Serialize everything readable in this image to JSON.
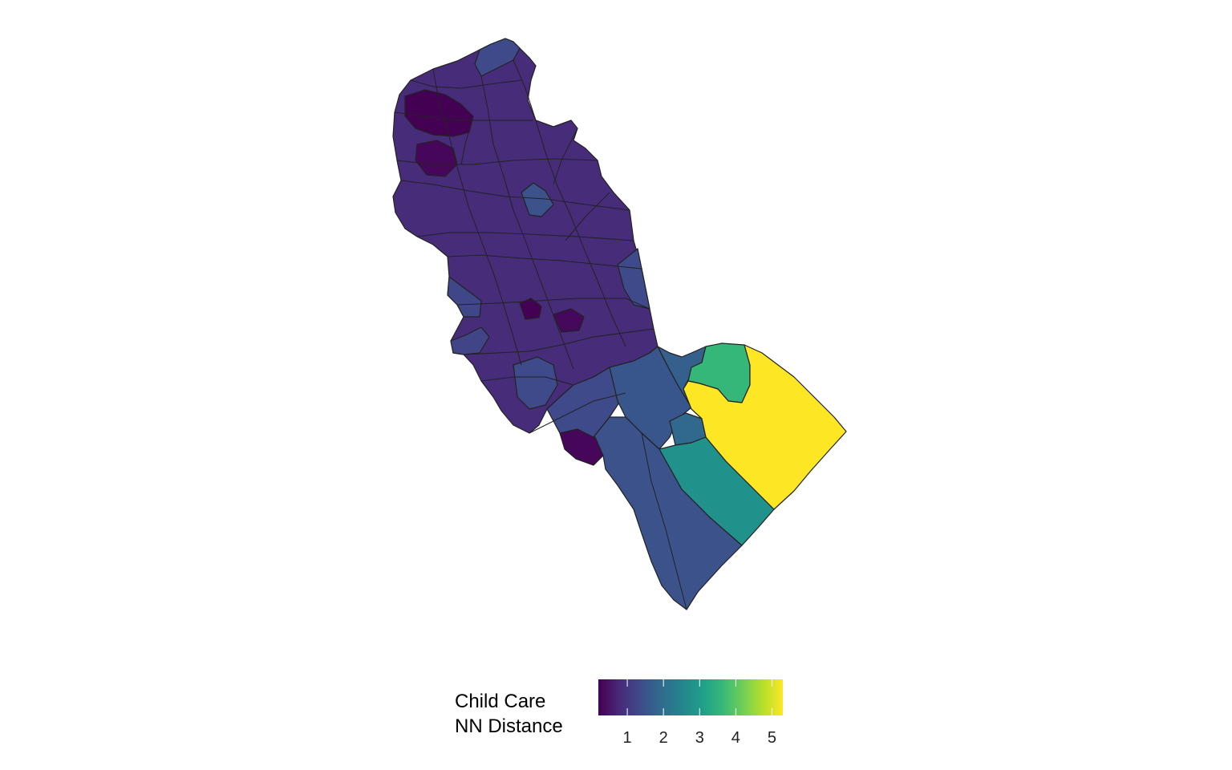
{
  "legend": {
    "title_line1": "Child Care",
    "title_line2": "NN Distance",
    "ticks": [
      {
        "value": 1,
        "label": "1"
      },
      {
        "value": 2,
        "label": "2"
      },
      {
        "value": 3,
        "label": "3"
      },
      {
        "value": 4,
        "label": "4"
      },
      {
        "value": 5,
        "label": "5"
      }
    ],
    "range": [
      0.2,
      5.3
    ],
    "palette": "viridis"
  },
  "colors": {
    "viridis": [
      "#440154",
      "#482878",
      "#3e4a89",
      "#31688e",
      "#26828e",
      "#1f9e89",
      "#35b779",
      "#6ece58",
      "#b5de2b",
      "#fde725"
    ],
    "border": "#222222",
    "background": "#ffffff"
  }
}
